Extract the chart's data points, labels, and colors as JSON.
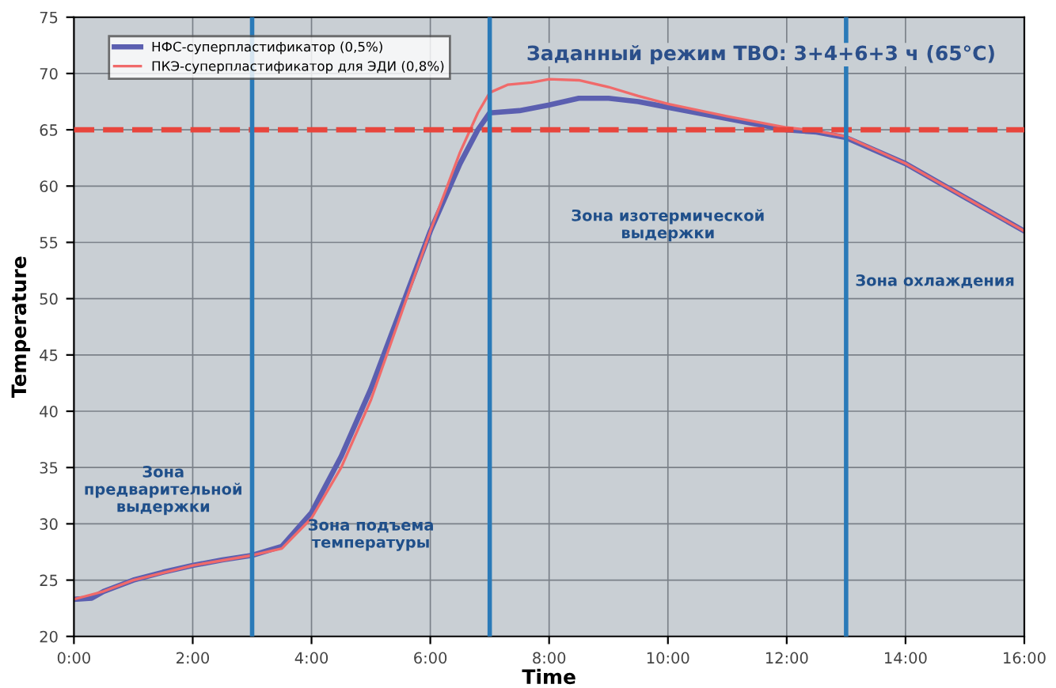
{
  "chart_data": {
    "type": "line",
    "title": "Заданный режим ТВО: 3+4+6+3 ч (65°C)",
    "xlabel": "Time",
    "ylabel": "Temperature",
    "series": [
      {
        "name": "НФС-суперпластификатор (0,5%)",
        "color": "#5b5fb0",
        "x": [
          0,
          0.3,
          0.5,
          1,
          1.5,
          2,
          2.5,
          3,
          3.5,
          4,
          4.5,
          5,
          5.5,
          6,
          6.5,
          6.8,
          7,
          7.5,
          8,
          8.5,
          9,
          9.5,
          10,
          11,
          12,
          12.5,
          13,
          14,
          15,
          16
        ],
        "values": [
          23.3,
          23.4,
          24,
          25,
          25.7,
          26.3,
          26.8,
          27.2,
          28,
          31,
          36,
          42,
          49,
          56,
          62,
          65,
          66.5,
          66.7,
          67.2,
          67.8,
          67.8,
          67.5,
          67,
          66,
          65,
          64.8,
          64.3,
          62,
          59,
          56
        ]
      },
      {
        "name": "ПКЭ-суперпластификатор для ЭДИ (0,8%)",
        "color": "#f06a6a",
        "x": [
          0,
          0.5,
          1,
          2,
          3,
          3.5,
          4,
          4.5,
          5,
          5.5,
          6,
          6.5,
          6.8,
          7,
          7.3,
          7.7,
          8,
          8.5,
          9,
          9.5,
          10,
          11,
          12,
          12.5,
          13,
          14,
          15,
          16
        ],
        "values": [
          23.3,
          24,
          25,
          26.3,
          27.2,
          27.8,
          30.5,
          35,
          41,
          48.5,
          56,
          63,
          66.5,
          68.3,
          69,
          69.2,
          69.5,
          69.4,
          68.8,
          68,
          67.3,
          66.2,
          65.2,
          64.9,
          64.4,
          62,
          59,
          56
        ]
      }
    ],
    "xlim": [
      0,
      16
    ],
    "xticks": [
      {
        "value": 0,
        "label": "0:00"
      },
      {
        "value": 2,
        "label": "2:00"
      },
      {
        "value": 4,
        "label": "4:00"
      },
      {
        "value": 6,
        "label": "6:00"
      },
      {
        "value": 8,
        "label": "8:00"
      },
      {
        "value": 10,
        "label": "10:00"
      },
      {
        "value": 12,
        "label": "12:00"
      },
      {
        "value": 14,
        "label": "14:00"
      },
      {
        "value": 16,
        "label": "16:00"
      }
    ],
    "ylim": [
      20,
      75
    ],
    "yticks": [
      20,
      25,
      30,
      35,
      40,
      45,
      50,
      55,
      60,
      65,
      70,
      75
    ],
    "ref_lines": [
      {
        "axis": "y",
        "value": 65,
        "color": "#e8453c",
        "line_style": "dashed"
      },
      {
        "axis": "x",
        "value": 3,
        "color": "#2a7ab8",
        "line_style": "solid"
      },
      {
        "axis": "x",
        "value": 7,
        "color": "#2a7ab8",
        "line_style": "solid"
      },
      {
        "axis": "x",
        "value": 13,
        "color": "#2a7ab8",
        "line_style": "solid"
      }
    ],
    "annotations": [
      "Зона\nпредварительной\nвыдержки",
      "Зона подъема\nтемпературы",
      "Зона изотермической\nвыдержки",
      "Зона охлаждения"
    ],
    "grid": true,
    "legend": "top left",
    "marker": "none",
    "line_style": "solid"
  }
}
